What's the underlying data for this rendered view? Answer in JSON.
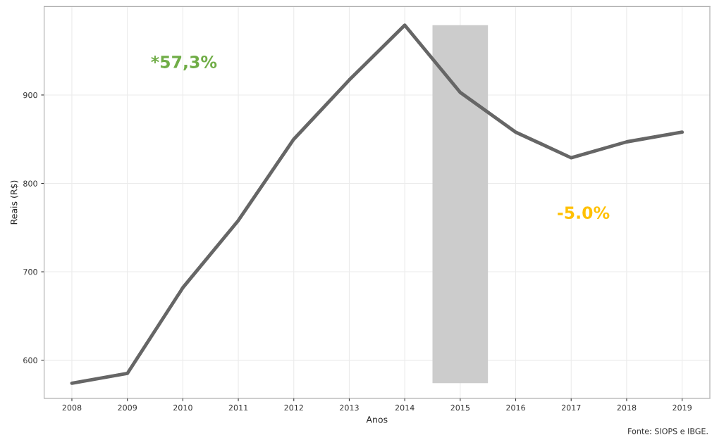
{
  "chart_data": {
    "type": "line",
    "xlabel": "Anos",
    "ylabel": "Reais (R$)",
    "x": [
      2008,
      2009,
      2010,
      2011,
      2012,
      2013,
      2014,
      2015,
      2016,
      2017,
      2018,
      2019
    ],
    "series": [
      {
        "color": "#666666",
        "values": [
          574,
          585,
          682,
          758,
          850,
          917,
          979,
          903,
          858,
          829,
          847,
          858
        ]
      }
    ],
    "xlim": [
      2007.5,
      2019.5
    ],
    "xticks": [
      2008,
      2009,
      2010,
      2011,
      2012,
      2013,
      2014,
      2015,
      2016,
      2017,
      2018,
      2019
    ],
    "ylim": [
      557,
      1000
    ],
    "yticks": [
      600,
      700,
      800,
      900
    ],
    "bands": [
      {
        "axis": "x",
        "from": 2014.5,
        "to": 2015.5,
        "color": "#cccccc"
      }
    ],
    "annotations": [
      "*57,3%",
      "-5.0%",
      "Fonte: SIOPS e IBGE."
    ],
    "grid": true,
    "legend": false
  }
}
